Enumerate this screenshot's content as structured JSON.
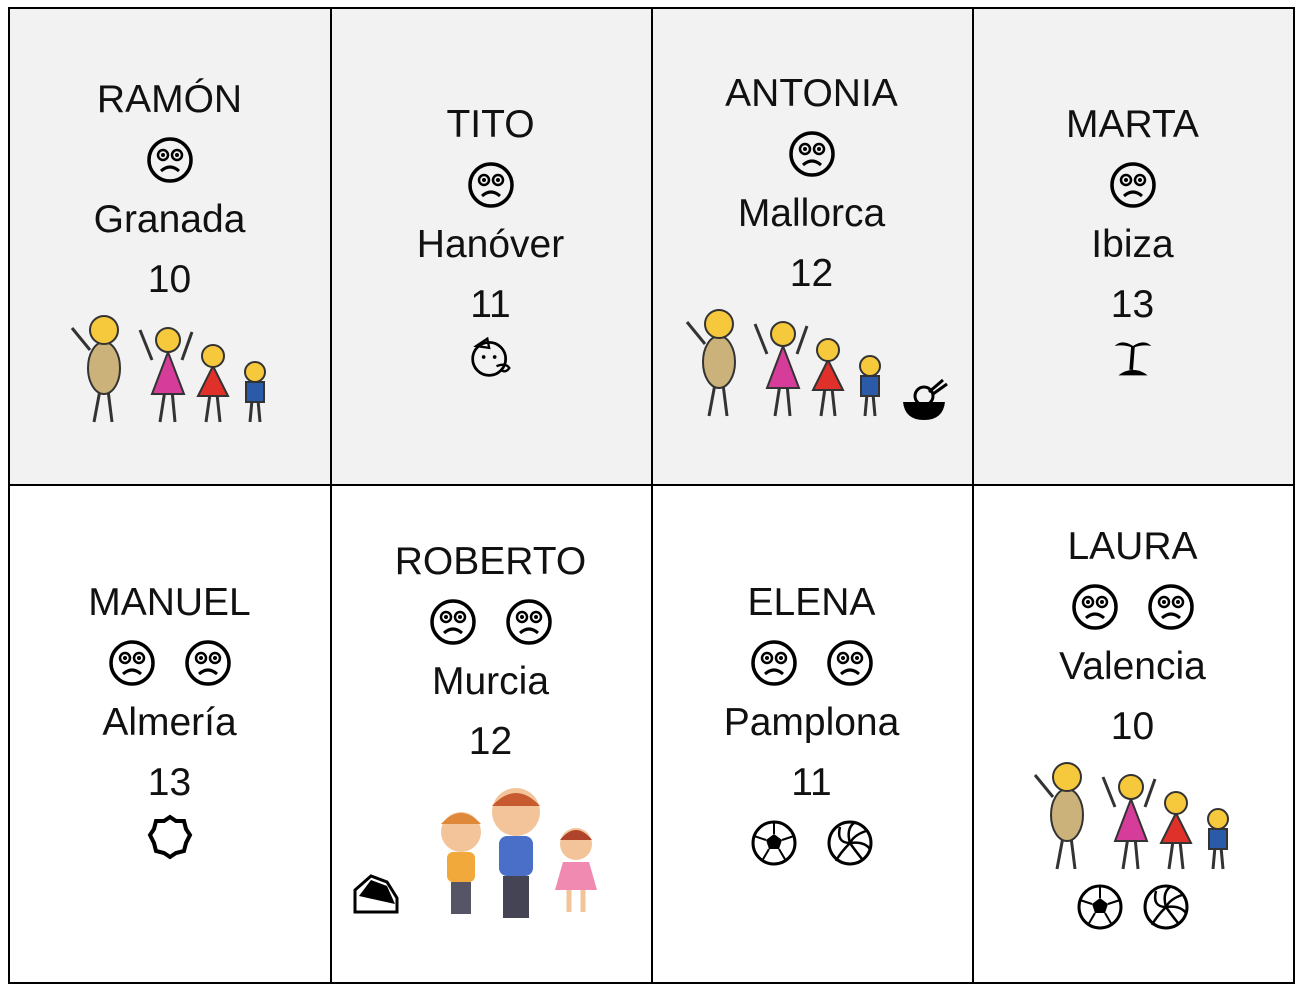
{
  "cells": [
    {
      "name": "RAMÓN",
      "city": "Granada",
      "number": 10
    },
    {
      "name": "TITO",
      "city": "Hanóver",
      "number": 11
    },
    {
      "name": "ANTONIA",
      "city": "Mallorca",
      "number": 12
    },
    {
      "name": "MARTA",
      "city": "Ibiza",
      "number": 13
    },
    {
      "name": "MANUEL",
      "city": "Almería",
      "number": 13
    },
    {
      "name": "ROBERTO",
      "city": "Murcia",
      "number": 12
    },
    {
      "name": "ELENA",
      "city": "Pamplona",
      "number": 11
    },
    {
      "name": "LAURA",
      "city": "Valencia",
      "number": 10
    }
  ]
}
